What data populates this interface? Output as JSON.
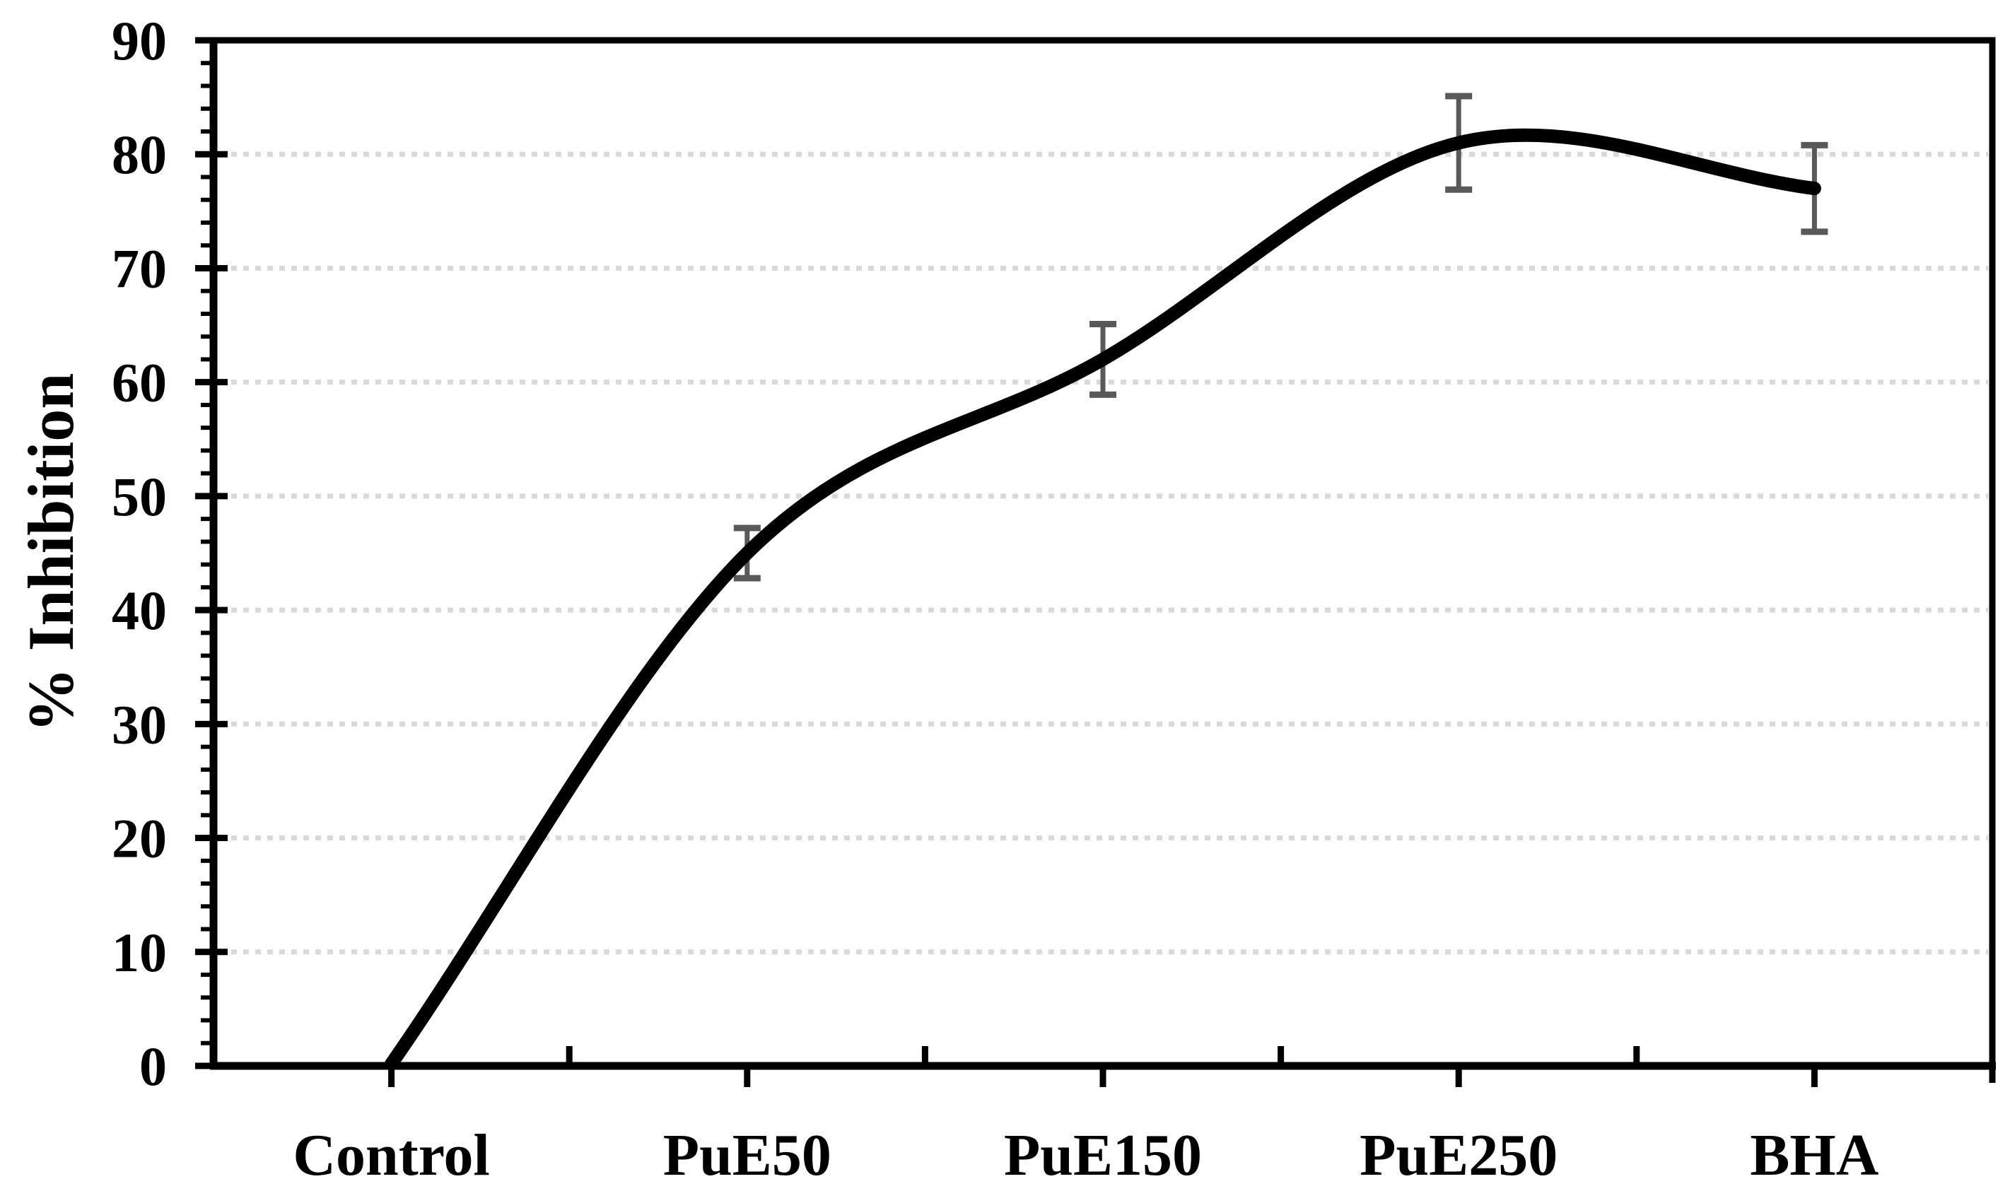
{
  "figure": {
    "background": "#ffffff"
  },
  "chart_data": {
    "type": "line",
    "smooth": true,
    "title": "",
    "xlabel": "",
    "ylabel": "% Inhibition",
    "categories": [
      "Control",
      "PuE50",
      "PuE150",
      "PuE250",
      "BHA"
    ],
    "series": [
      {
        "name": "% Inhibition",
        "values": [
          0,
          45,
          62,
          81,
          77
        ],
        "error_bars": [
          0,
          2.2,
          3.1,
          4.1,
          3.8
        ]
      }
    ],
    "ylim": [
      0,
      90
    ],
    "yticks": [
      0,
      10,
      20,
      30,
      40,
      50,
      60,
      70,
      80,
      90
    ],
    "ytick_step": 10,
    "y_minor_step": 2,
    "grid": "horizontal",
    "gridline_style": "dotted",
    "legend": "none",
    "plot_frame": true,
    "colors": {
      "line": "#000000",
      "error_bar": "#595959",
      "gridline": "#d9d9d9",
      "frame": "#000000",
      "text": "#000000"
    }
  }
}
